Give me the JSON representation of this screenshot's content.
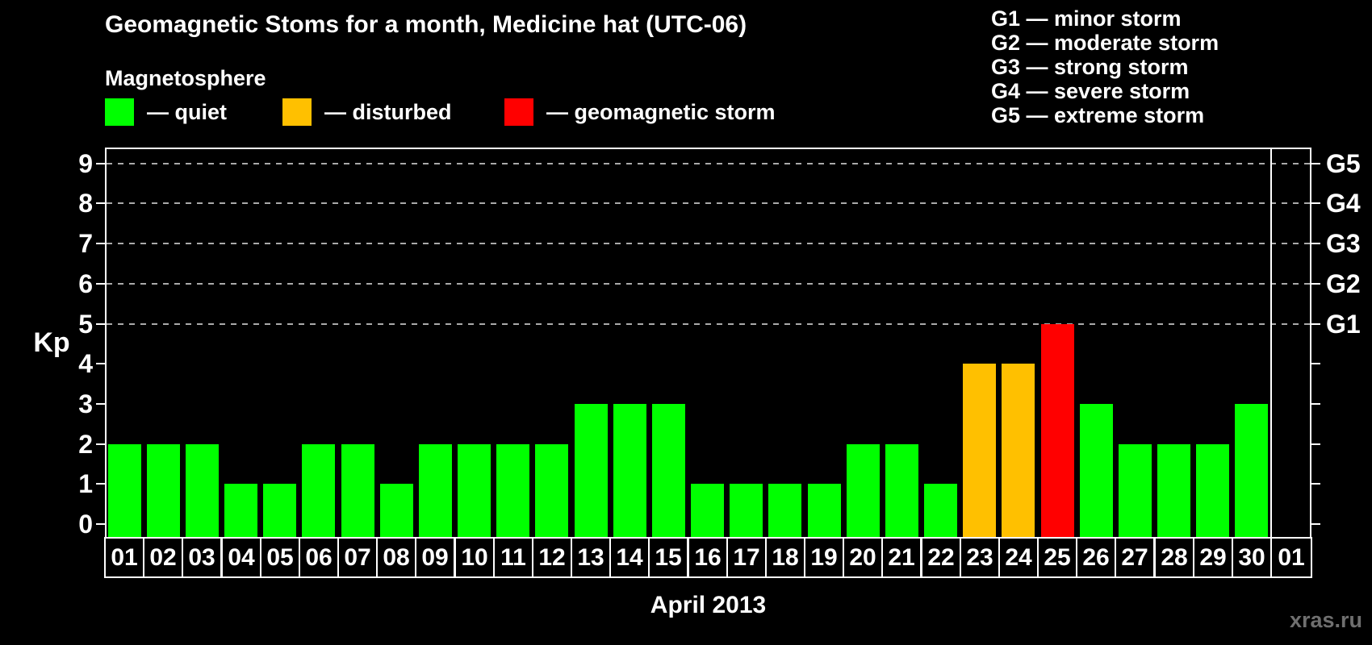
{
  "title": "Geomagnetic Stoms for a month, Medicine hat (UTC-06)",
  "magnetosphere_legend": {
    "title": "Magnetosphere",
    "items": [
      {
        "name": "quiet",
        "label": "— quiet",
        "color": "#00FF00"
      },
      {
        "name": "disturbed",
        "label": "— disturbed",
        "color": "#FFC000"
      },
      {
        "name": "storm",
        "label": "— geomagnetic storm",
        "color": "#FF0000"
      }
    ]
  },
  "storm_scale_legend": {
    "items": [
      "G1 — minor storm",
      "G2 — moderate storm",
      "G3 — strong storm",
      "G4 — severe storm",
      "G5 — extreme storm"
    ]
  },
  "watermark": "xras.ru",
  "chart_data": {
    "type": "bar",
    "title": "Geomagnetic Stoms for a month, Medicine hat (UTC-06)",
    "xlabel": "April 2013",
    "ylabel": "Kp",
    "ylim": [
      0,
      9
    ],
    "y_ticks": [
      0,
      1,
      2,
      3,
      4,
      5,
      6,
      7,
      8,
      9
    ],
    "grid_style": "dashed",
    "gridlines_at_kp": [
      5,
      6,
      7,
      8,
      9
    ],
    "right_axis": {
      "labels": [
        "G1",
        "G2",
        "G3",
        "G4",
        "G5"
      ],
      "at_kp": [
        5,
        6,
        7,
        8,
        9
      ]
    },
    "categories": [
      "01",
      "02",
      "03",
      "04",
      "05",
      "06",
      "07",
      "08",
      "09",
      "10",
      "11",
      "12",
      "13",
      "14",
      "15",
      "16",
      "17",
      "18",
      "19",
      "20",
      "21",
      "22",
      "23",
      "24",
      "25",
      "26",
      "27",
      "28",
      "29",
      "30",
      "01"
    ],
    "values": [
      2,
      2,
      2,
      1,
      1,
      2,
      2,
      1,
      2,
      2,
      2,
      2,
      3,
      3,
      3,
      1,
      1,
      1,
      1,
      2,
      2,
      1,
      4,
      4,
      5,
      3,
      2,
      2,
      2,
      3,
      null
    ],
    "statuses": [
      "quiet",
      "quiet",
      "quiet",
      "quiet",
      "quiet",
      "quiet",
      "quiet",
      "quiet",
      "quiet",
      "quiet",
      "quiet",
      "quiet",
      "quiet",
      "quiet",
      "quiet",
      "quiet",
      "quiet",
      "quiet",
      "quiet",
      "quiet",
      "quiet",
      "quiet",
      "disturbed",
      "disturbed",
      "storm",
      "quiet",
      "quiet",
      "quiet",
      "quiet",
      "quiet",
      null
    ],
    "status_colors": {
      "quiet": "#00FF00",
      "disturbed": "#FFC000",
      "storm": "#FF0000"
    }
  }
}
